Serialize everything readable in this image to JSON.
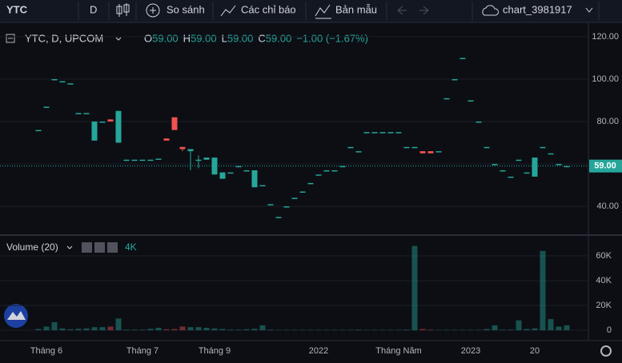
{
  "toolbar": {
    "symbol": "YTC",
    "interval": "D",
    "compare": "So sánh",
    "indicators": "Các chỉ báo",
    "templates": "Bản mẫu",
    "layout": "chart_3981917"
  },
  "chart_data": {
    "type": "candlestick",
    "legend": {
      "title": "YTC, D, UPCOM",
      "o_label": "O",
      "o": "59.00",
      "h_label": "H",
      "h": "59.00",
      "l_label": "L",
      "l": "59.00",
      "c_label": "C",
      "c": "59.00",
      "change": "−1.00 (−1.67%)"
    },
    "categories": [
      null,
      "Tháng 6",
      null,
      null,
      null,
      null,
      null,
      null,
      null,
      null,
      null,
      null,
      null,
      "Tháng 7",
      null,
      null,
      null,
      null,
      null,
      null,
      null,
      null,
      "Tháng 9",
      null,
      null,
      null,
      null,
      null,
      null,
      null,
      null,
      null,
      null,
      null,
      null,
      "2022",
      null,
      null,
      null,
      null,
      null,
      null,
      null,
      null,
      null,
      "Tháng Năm",
      null,
      null,
      null,
      null,
      null,
      null,
      null,
      null,
      "2023",
      null,
      null,
      null,
      null,
      null,
      null,
      null,
      "20",
      null,
      null,
      null,
      null
    ],
    "open": [
      76,
      87,
      100,
      99,
      98,
      84,
      84,
      80,
      80,
      80,
      85,
      62,
      62,
      62,
      62,
      62.5,
      71,
      76,
      67,
      67,
      62,
      63,
      63,
      56,
      56,
      59,
      57,
      57,
      50,
      41,
      35,
      40,
      44,
      47,
      51,
      55,
      57,
      57,
      59,
      68,
      66,
      75,
      75,
      75,
      75,
      75,
      68,
      68,
      65,
      65,
      66,
      91,
      100,
      110,
      90,
      80,
      68,
      60,
      57,
      54,
      62,
      56,
      63,
      68,
      65,
      60,
      59
    ],
    "high": [
      76,
      87,
      100,
      99,
      98,
      84,
      84,
      80,
      80,
      81,
      85,
      62,
      62,
      62,
      62,
      62.5,
      72,
      82,
      68,
      67,
      64,
      63,
      63,
      56,
      56,
      59,
      57,
      57,
      50,
      41,
      35,
      40,
      44,
      47,
      51,
      55,
      57,
      57,
      59,
      68,
      66,
      75,
      75,
      75,
      75,
      75,
      68,
      68,
      66,
      66,
      66,
      91,
      100,
      110,
      90,
      80,
      68,
      60,
      57,
      54,
      62,
      56,
      63,
      68,
      65,
      60,
      59
    ],
    "low": [
      76,
      87,
      100,
      99,
      98,
      84,
      84,
      71,
      80,
      80,
      70,
      62,
      62,
      62,
      62,
      62.5,
      71,
      76,
      66,
      57,
      58,
      62,
      55,
      53,
      56,
      59,
      57,
      49,
      50,
      41,
      35,
      40,
      44,
      47,
      51,
      55,
      57,
      57,
      59,
      68,
      66,
      75,
      75,
      75,
      75,
      75,
      68,
      68,
      65,
      65,
      66,
      91,
      100,
      110,
      90,
      80,
      68,
      60,
      57,
      54,
      62,
      56,
      54,
      68,
      65,
      60,
      59
    ],
    "close": [
      76,
      87,
      100,
      99,
      98,
      84,
      84,
      71,
      80,
      81,
      70,
      62,
      62,
      62,
      62,
      62.5,
      72,
      82,
      68,
      66,
      62,
      62,
      55,
      53,
      56,
      59,
      57,
      49,
      50,
      41,
      35,
      40,
      44,
      47,
      51,
      55,
      57,
      57,
      59,
      68,
      66,
      75,
      75,
      75,
      75,
      75,
      68,
      68,
      66,
      66,
      66,
      91,
      100,
      110,
      90,
      80,
      68,
      60,
      57,
      54,
      62,
      56,
      54,
      68,
      65,
      60,
      59
    ],
    "volume": [
      1000,
      3000,
      6500,
      1500,
      800,
      1200,
      1500,
      2500,
      2500,
      3000,
      9500,
      500,
      500,
      500,
      1200,
      2000,
      800,
      1000,
      3000,
      2500,
      2500,
      2000,
      1500,
      1000,
      500,
      500,
      800,
      1200,
      4000,
      500,
      300,
      300,
      300,
      300,
      300,
      300,
      300,
      300,
      300,
      300,
      500,
      300,
      300,
      300,
      300,
      300,
      500,
      68000,
      1000,
      500,
      300,
      300,
      300,
      300,
      300,
      300,
      1000,
      4000,
      500,
      500,
      8000,
      1000,
      1500,
      64000,
      9000,
      3000,
      4000
    ],
    "up_color": "#ef5350",
    "down_color": "#26a69a",
    "ylim": [
      27.2,
      126
    ],
    "yticks": [
      {
        "value": 40,
        "label": "40.00"
      },
      {
        "value": 60,
        "label": "60.00"
      },
      {
        "value": 80,
        "label": "80.00"
      },
      {
        "value": 100,
        "label": "100.00"
      },
      {
        "value": 120,
        "label": "120.00"
      }
    ],
    "last_price": {
      "value": 59,
      "label": "59.00"
    },
    "volume_pane": {
      "title": "Volume (20)",
      "value": "4K"
    },
    "vlim": [
      -7700,
      75500
    ],
    "vticks": [
      0,
      {
        "value": 20000,
        "label": "20K"
      },
      {
        "value": 40000,
        "label": "40K"
      },
      {
        "value": 60000,
        "label": "60K"
      }
    ]
  }
}
